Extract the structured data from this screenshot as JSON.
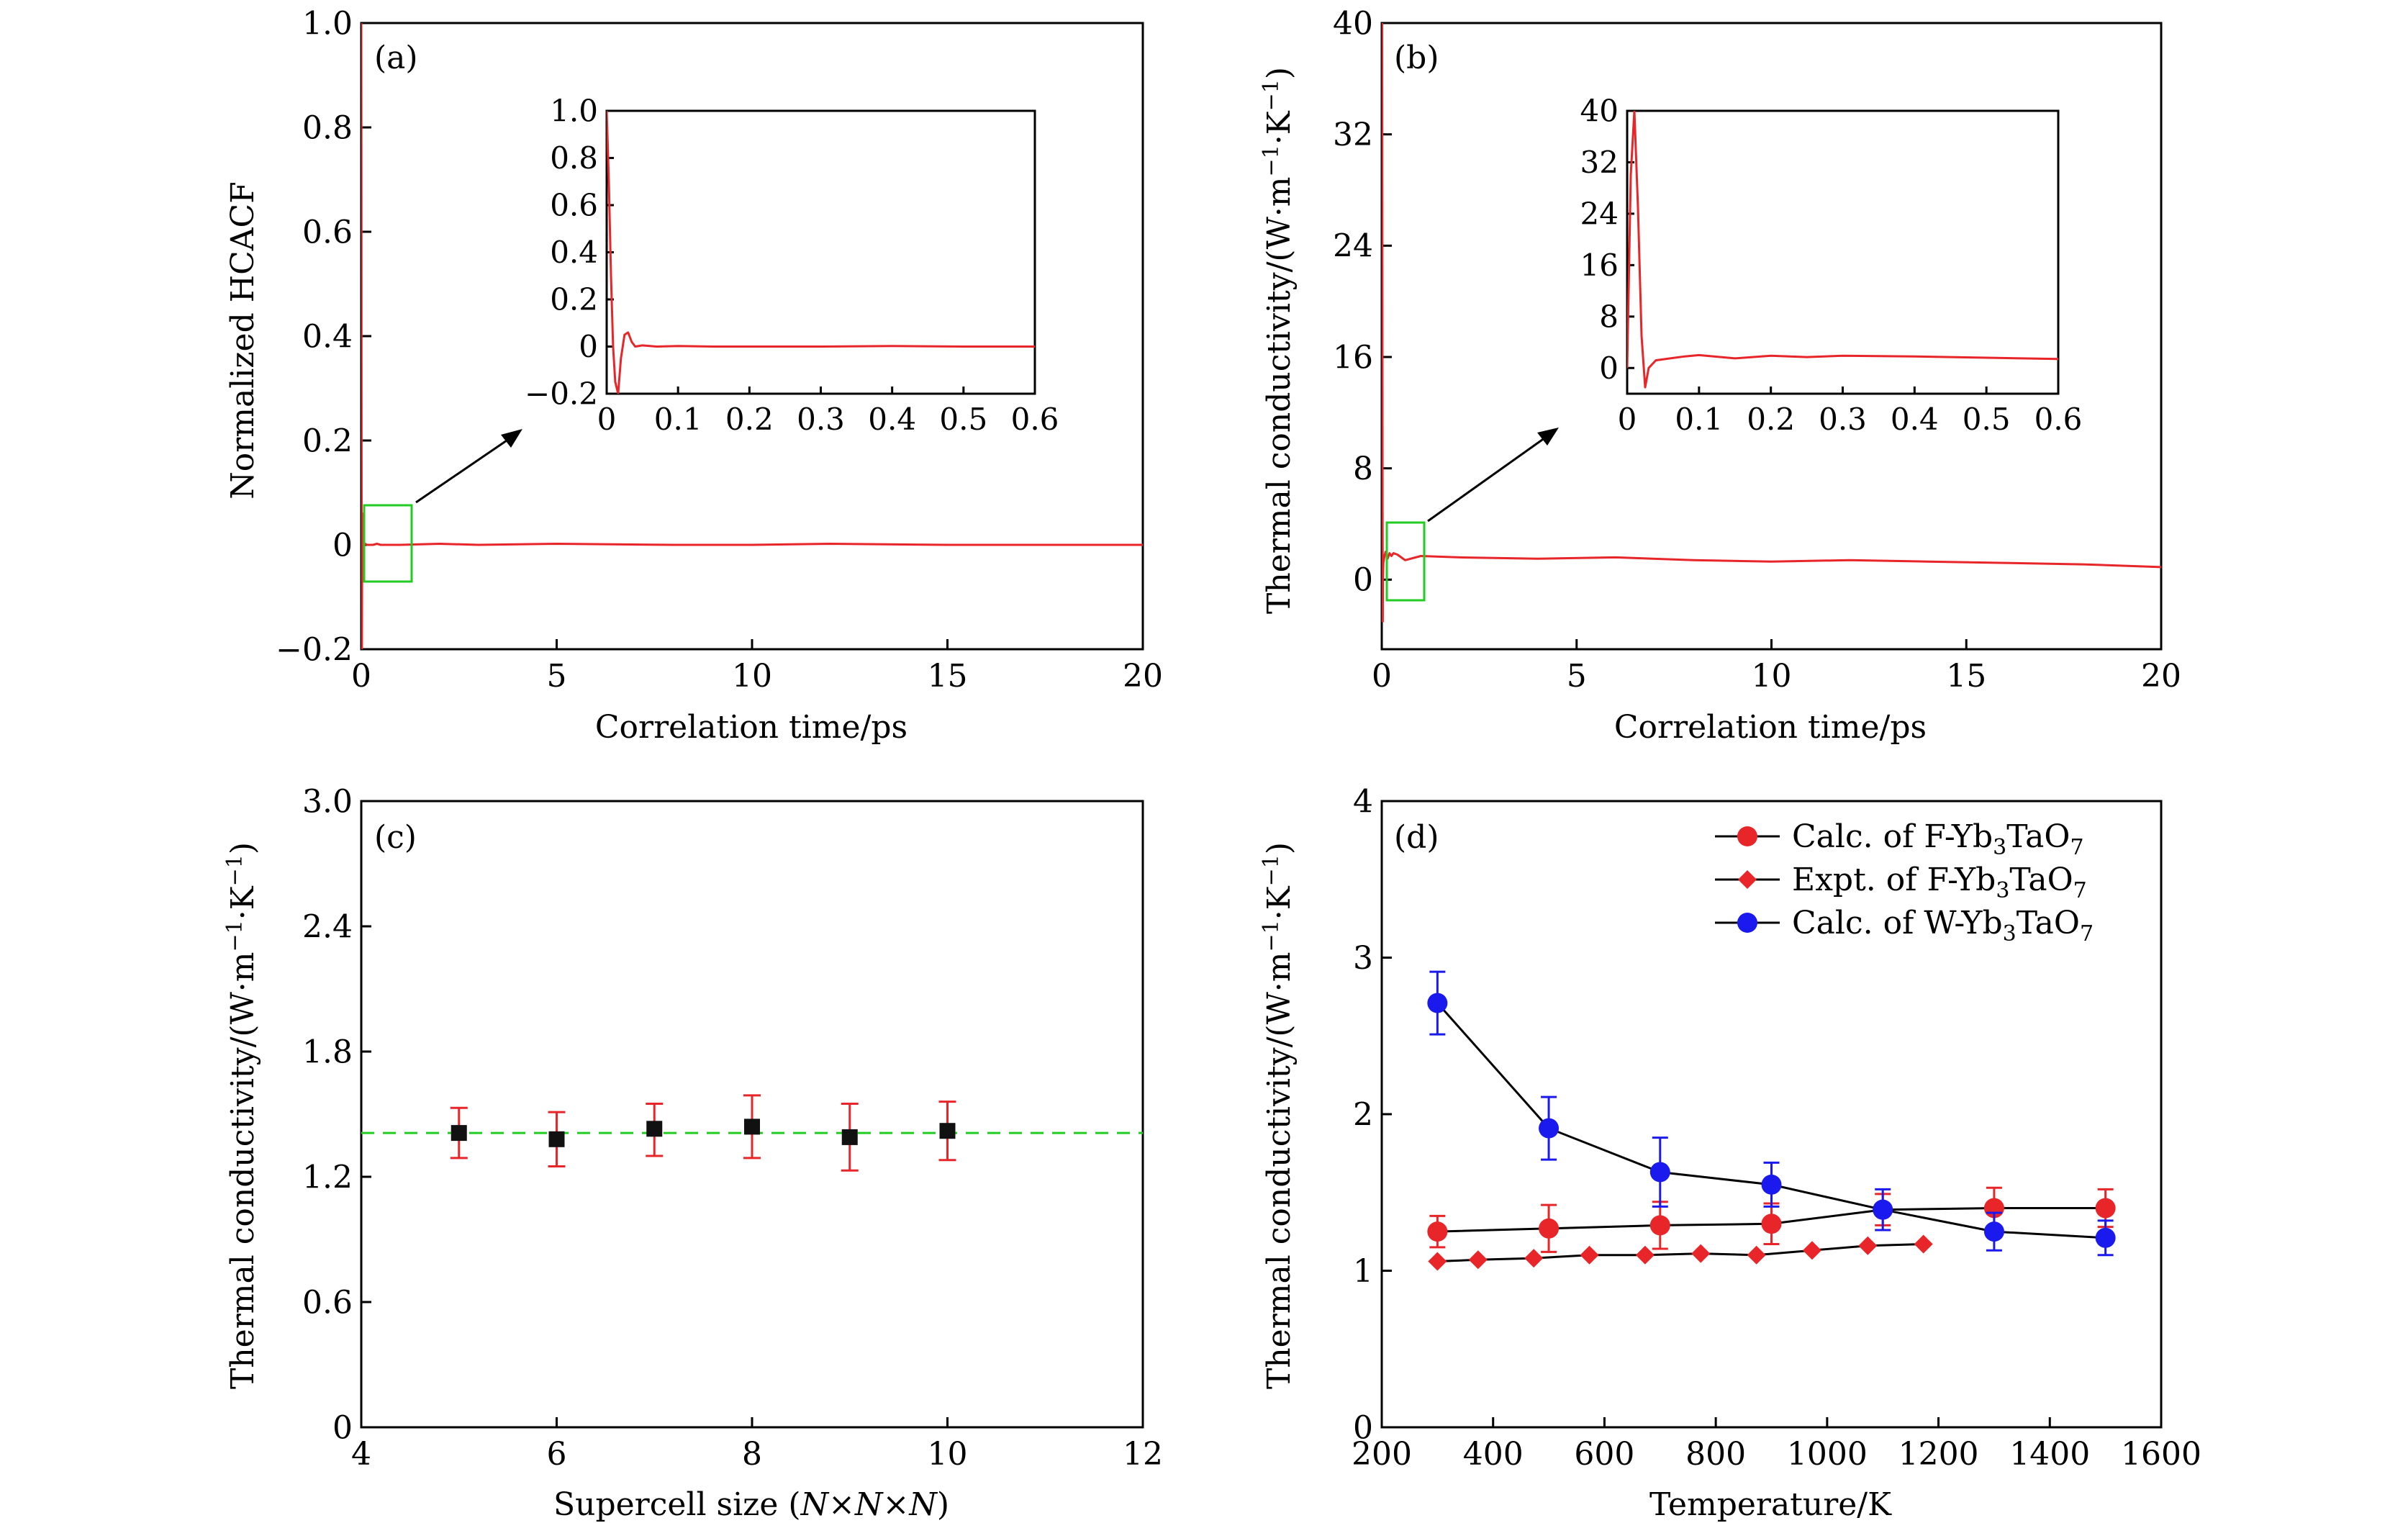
{
  "chart_data": [
    {
      "panel": "(a)",
      "type": "line",
      "xlabel": "Correlation time/ps",
      "ylabel": "Normalized HCACF",
      "xlim": [
        0,
        20
      ],
      "ylim": [
        -0.2,
        1.0
      ],
      "xticks": [
        "0",
        "5",
        "10",
        "15",
        "20"
      ],
      "yticks": [
        "−0.2",
        "0",
        "0.2",
        "0.4",
        "0.6",
        "0.8",
        "1.0"
      ],
      "series": [
        {
          "color": "#e8262a",
          "x": [
            0,
            0.003,
            0.006,
            0.009,
            0.012,
            0.016,
            0.02,
            0.025,
            0.03,
            0.035,
            0.04,
            0.05,
            0.07,
            0.1,
            0.15,
            0.2,
            0.3,
            0.4,
            0.5,
            0.6,
            1,
            2,
            3,
            5,
            8,
            10,
            12,
            15,
            18,
            20
          ],
          "y": [
            1.0,
            0.7,
            0.3,
            0.0,
            -0.15,
            -0.2,
            -0.05,
            0.05,
            0.06,
            0.02,
            0.0,
            0.005,
            0.0,
            0.002,
            0.0,
            0.0,
            0.0,
            0.002,
            0.0,
            0.0,
            0.0,
            0.002,
            0.0,
            0.002,
            0.0,
            0.0,
            0.002,
            0.0,
            0.0,
            0.0
          ]
        }
      ],
      "inset": {
        "xlim": [
          0,
          0.6
        ],
        "ylim": [
          -0.2,
          1.0
        ],
        "xticks": [
          "0",
          "0.1",
          "0.2",
          "0.3",
          "0.4",
          "0.5",
          "0.6"
        ],
        "yticks": [
          "−0.2",
          "0",
          "0.2",
          "0.4",
          "0.6",
          "0.8",
          "1.0"
        ]
      }
    },
    {
      "panel": "(b)",
      "type": "line",
      "xlabel": "Correlation time/ps",
      "ylabel": "Thermal conductivity/(W·m⁻¹·K⁻¹)",
      "xlim": [
        0,
        20
      ],
      "ylim": [
        -5,
        40
      ],
      "xticks": [
        "0",
        "5",
        "10",
        "15",
        "20"
      ],
      "yticks": [
        "0",
        "8",
        "16",
        "24",
        "32",
        "40"
      ],
      "series": [
        {
          "color": "#e8262a",
          "x": [
            0,
            0.005,
            0.01,
            0.015,
            0.02,
            0.025,
            0.03,
            0.04,
            0.06,
            0.08,
            0.1,
            0.15,
            0.2,
            0.25,
            0.3,
            0.4,
            0.5,
            0.6,
            1,
            2,
            4,
            6,
            8,
            10,
            12,
            14,
            16,
            18,
            20
          ],
          "y": [
            0,
            30,
            40,
            25,
            5,
            -3,
            0,
            1.2,
            1.5,
            1.8,
            2.0,
            1.5,
            1.9,
            1.7,
            1.9,
            1.8,
            1.6,
            1.4,
            1.7,
            1.6,
            1.5,
            1.6,
            1.4,
            1.3,
            1.4,
            1.3,
            1.2,
            1.1,
            0.9
          ]
        }
      ],
      "inset": {
        "xlim": [
          0,
          0.6
        ],
        "ylim": [
          -4,
          40
        ],
        "xticks": [
          "0",
          "0.1",
          "0.2",
          "0.3",
          "0.4",
          "0.5",
          "0.6"
        ],
        "yticks": [
          "0",
          "8",
          "16",
          "24",
          "32",
          "40"
        ]
      }
    },
    {
      "panel": "(c)",
      "type": "scatter",
      "xlabel_parts": [
        "Supercell size (",
        "N",
        "×",
        "N",
        "×",
        "N",
        ")"
      ],
      "ylabel": "Thermal conductivity/(W·m⁻¹·K⁻¹)",
      "xlim": [
        4,
        12
      ],
      "ylim": [
        0,
        3.0
      ],
      "xticks": [
        "4",
        "6",
        "8",
        "10",
        "12"
      ],
      "yticks": [
        "0",
        "0.6",
        "1.2",
        "1.8",
        "2.4",
        "3.0"
      ],
      "reference_line": 1.41,
      "points": {
        "x": [
          5,
          6,
          7,
          8,
          9,
          10
        ],
        "y": [
          1.41,
          1.38,
          1.43,
          1.44,
          1.39,
          1.42
        ],
        "err_low": [
          0.12,
          0.13,
          0.13,
          0.15,
          0.16,
          0.14
        ],
        "err_high": [
          0.12,
          0.13,
          0.12,
          0.15,
          0.16,
          0.14
        ]
      },
      "colors": {
        "marker": "#111111",
        "error": "#e8262a",
        "reference": "#22cc22"
      }
    },
    {
      "panel": "(d)",
      "type": "line",
      "xlabel": "Temperature/K",
      "ylabel": "Thermal conductivity/(W·m⁻¹·K⁻¹)",
      "xlim": [
        200,
        1600
      ],
      "ylim": [
        0,
        4
      ],
      "xticks": [
        "200",
        "400",
        "600",
        "800",
        "1000",
        "1200",
        "1400",
        "1600"
      ],
      "yticks": [
        "0",
        "1",
        "2",
        "3",
        "4"
      ],
      "legend_position": "top-right",
      "series": [
        {
          "legend": [
            "Calc. of F-Yb",
            "3",
            "TaO",
            "7"
          ],
          "color": "#e8262a",
          "marker": "circle",
          "x": [
            300,
            500,
            700,
            900,
            1100,
            1300,
            1500
          ],
          "y": [
            1.25,
            1.27,
            1.29,
            1.3,
            1.39,
            1.4,
            1.4
          ],
          "err": [
            0.1,
            0.15,
            0.15,
            0.13,
            0.1,
            0.13,
            0.12
          ]
        },
        {
          "legend": [
            "Expt. of F-Yb",
            "3",
            "TaO",
            "7"
          ],
          "color": "#e8262a",
          "marker": "diamond",
          "x": [
            300,
            373,
            473,
            573,
            673,
            773,
            873,
            973,
            1073,
            1173
          ],
          "y": [
            1.06,
            1.07,
            1.08,
            1.1,
            1.1,
            1.11,
            1.1,
            1.13,
            1.16,
            1.17
          ]
        },
        {
          "legend": [
            "Calc. of W-Yb",
            "3",
            "TaO",
            "7"
          ],
          "color": "#1a1aee",
          "marker": "circle",
          "x": [
            300,
            500,
            700,
            900,
            1100,
            1300,
            1500
          ],
          "y": [
            2.71,
            1.91,
            1.63,
            1.55,
            1.39,
            1.25,
            1.21
          ],
          "err": [
            0.2,
            0.2,
            0.22,
            0.14,
            0.13,
            0.12,
            0.11
          ]
        }
      ]
    }
  ]
}
